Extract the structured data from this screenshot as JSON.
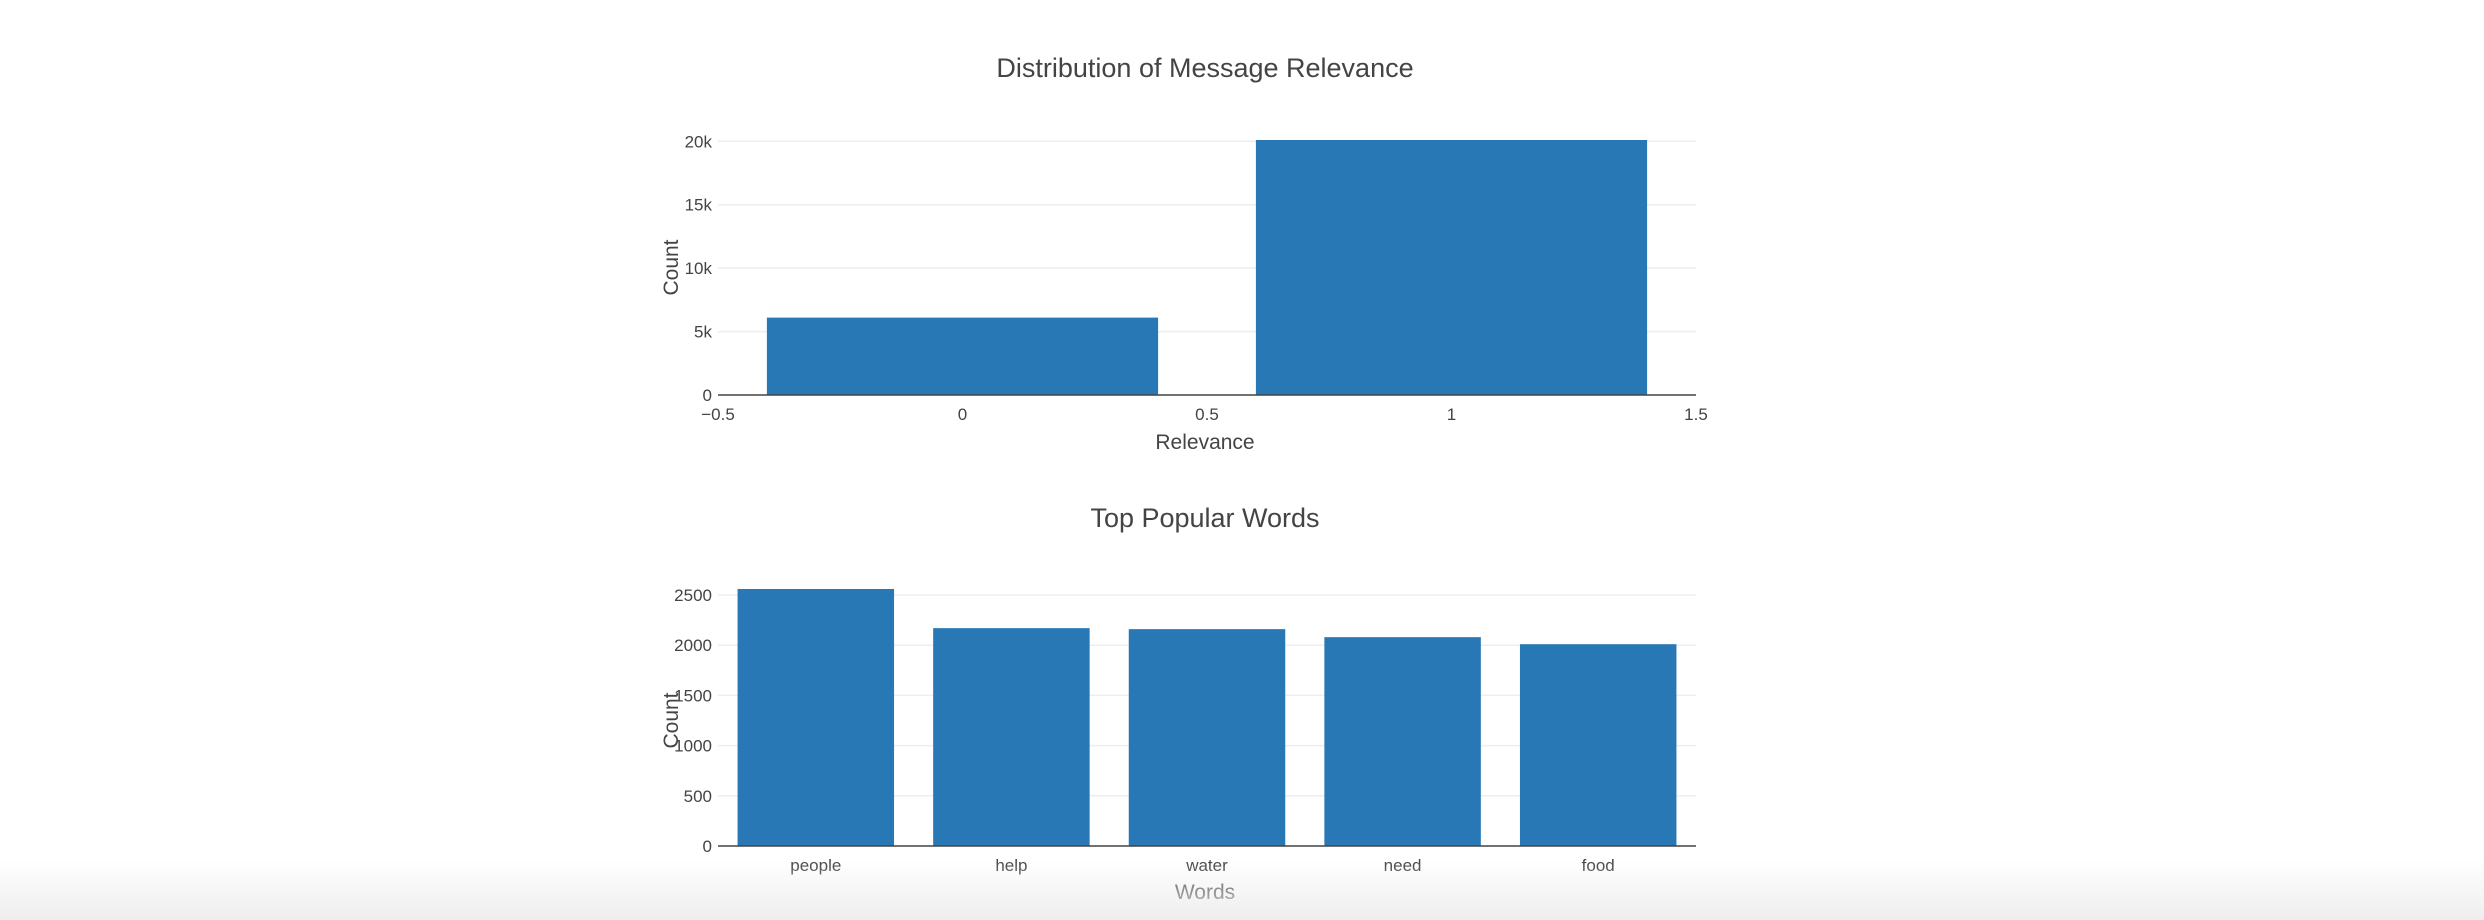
{
  "chart_data": [
    {
      "type": "bar",
      "title": "Distribution of Message Relevance",
      "xlabel": "Relevance",
      "ylabel": "Count",
      "x_axis_kind": "linear",
      "xlim": [
        -0.5,
        1.5
      ],
      "x_ticks": [
        {
          "value": -0.5,
          "label": "−0.5"
        },
        {
          "value": 0,
          "label": "0"
        },
        {
          "value": 0.5,
          "label": "0.5"
        },
        {
          "value": 1,
          "label": "1"
        },
        {
          "value": 1.5,
          "label": "1.5"
        }
      ],
      "ylim": [
        0,
        20100
      ],
      "y_ticks": [
        {
          "value": 0,
          "label": "0"
        },
        {
          "value": 5000,
          "label": "5k"
        },
        {
          "value": 10000,
          "label": "10k"
        },
        {
          "value": 15000,
          "label": "15k"
        },
        {
          "value": 20000,
          "label": "20k"
        }
      ],
      "bar_width": 0.8,
      "x": [
        0,
        1
      ],
      "values": [
        6100,
        20100
      ],
      "color": "#2778b4",
      "grid": true
    },
    {
      "type": "bar",
      "title": "Top Popular Words",
      "xlabel": "Words",
      "ylabel": "Count",
      "x_axis_kind": "category",
      "categories": [
        "people",
        "help",
        "water",
        "need",
        "food"
      ],
      "ylim": [
        0,
        2500
      ],
      "y_ticks": [
        {
          "value": 0,
          "label": "0"
        },
        {
          "value": 500,
          "label": "500"
        },
        {
          "value": 1000,
          "label": "1000"
        },
        {
          "value": 1500,
          "label": "1500"
        },
        {
          "value": 2000,
          "label": "2000"
        },
        {
          "value": 2500,
          "label": "2500"
        }
      ],
      "values": [
        2560,
        2170,
        2160,
        2080,
        2010
      ],
      "color": "#2778b4",
      "grid": true
    }
  ]
}
